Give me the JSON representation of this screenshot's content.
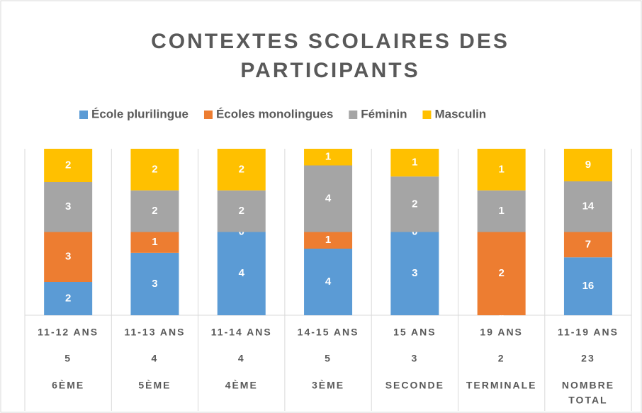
{
  "chart_data": {
    "type": "bar",
    "stacking": "percent",
    "title": [
      "CONTEXTES SCOLAIRES DES",
      "PARTICIPANTS"
    ],
    "categories": [
      "6ÈME",
      "5ÈME",
      "4ÈME",
      "3ÈME",
      "SECONDE",
      "TERMINALE",
      [
        "NOMBRE",
        "TOTAL"
      ]
    ],
    "age_ranges": [
      "11-12 ANS",
      "11-13 ANS",
      "11-14 ANS",
      "14-15 ANS",
      "15 ANS",
      "19 ANS",
      "11-19 ANS"
    ],
    "participants": [
      "5",
      "4",
      "4",
      "5",
      "3",
      "2",
      "23"
    ],
    "legend": "top",
    "series": [
      {
        "name": "École plurilingue",
        "color": "#5b9bd5",
        "values": [
          2,
          3,
          4,
          4,
          3,
          0,
          16
        ]
      },
      {
        "name": "Écoles monolingues",
        "color": "#ed7d31",
        "values": [
          3,
          1,
          0,
          1,
          0,
          2,
          7
        ]
      },
      {
        "name": "Féminin",
        "color": "#a5a5a5",
        "values": [
          3,
          2,
          2,
          4,
          2,
          1,
          14
        ]
      },
      {
        "name": "Masculin",
        "color": "#ffc000",
        "values": [
          2,
          2,
          2,
          1,
          1,
          1,
          9
        ]
      }
    ]
  }
}
